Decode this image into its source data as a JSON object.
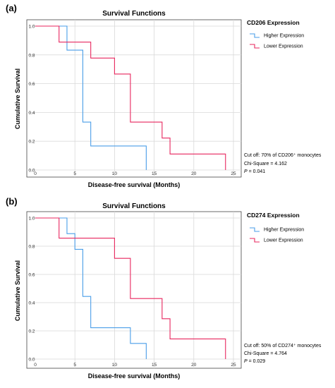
{
  "chart_data": [
    {
      "type": "line",
      "panel_label": "(a)",
      "title": "Survival Functions",
      "xlabel": "Disease-free survival (Months)",
      "ylabel": "Cumulative Survival",
      "xlim": [
        0,
        25
      ],
      "ylim": [
        0,
        1.0
      ],
      "xticks": [
        "0",
        "5",
        "10",
        "15",
        "20",
        "25"
      ],
      "yticks": [
        "0.0",
        "0.2",
        "0.4",
        "0.6",
        "0.8",
        "1.0"
      ],
      "grid": true,
      "legend": {
        "title": "CD206 Expression",
        "placement": "right",
        "entries": [
          "Higher Expression",
          "Lower Expression"
        ]
      },
      "series": [
        {
          "name": "Higher Expression",
          "color": "#4a9ee8",
          "steps": [
            [
              0,
              1.0
            ],
            [
              4,
              0.833
            ],
            [
              6,
              0.333
            ],
            [
              7,
              0.167
            ],
            [
              14,
              0.167
            ]
          ],
          "end_x": 14,
          "end_y": 0.0
        },
        {
          "name": "Lower Expression",
          "color": "#e8265e",
          "steps": [
            [
              0,
              1.0
            ],
            [
              3,
              0.889
            ],
            [
              7,
              0.778
            ],
            [
              10,
              0.667
            ],
            [
              12,
              0.333
            ],
            [
              16,
              0.222
            ],
            [
              17,
              0.111
            ],
            [
              24,
              0.111
            ]
          ],
          "end_x": 24,
          "end_y": 0.0
        }
      ],
      "annotation": {
        "line1": "Cut off: 70% of CD206⁺ monocytes",
        "line2": "Chi-Square = 4.162",
        "p_label": "P",
        "p_value": " = 0.041"
      }
    },
    {
      "type": "line",
      "panel_label": "(b)",
      "title": "Survival Functions",
      "xlabel": "Disease-free survival (Months)",
      "ylabel": "Cumulative Survival",
      "xlim": [
        0,
        25
      ],
      "ylim": [
        0,
        1.0
      ],
      "xticks": [
        "0",
        "5",
        "10",
        "15",
        "20",
        "25"
      ],
      "yticks": [
        "0.0",
        "0.2",
        "0.4",
        "0.6",
        "0.8",
        "1.0"
      ],
      "grid": true,
      "legend": {
        "title": "CD274 Expression",
        "placement": "right",
        "entries": [
          "Higher Expression",
          "Lower Expression"
        ]
      },
      "series": [
        {
          "name": "Higher Expression",
          "color": "#4a9ee8",
          "steps": [
            [
              0,
              1.0
            ],
            [
              4,
              0.889
            ],
            [
              5,
              0.778
            ],
            [
              6,
              0.444
            ],
            [
              7,
              0.222
            ],
            [
              12,
              0.111
            ],
            [
              14,
              0.111
            ]
          ],
          "end_x": 14,
          "end_y": 0.0
        },
        {
          "name": "Lower Expression",
          "color": "#e8265e",
          "steps": [
            [
              0,
              1.0
            ],
            [
              3,
              0.857
            ],
            [
              10,
              0.714
            ],
            [
              12,
              0.429
            ],
            [
              16,
              0.286
            ],
            [
              17,
              0.143
            ],
            [
              24,
              0.143
            ]
          ],
          "end_x": 24,
          "end_y": 0.0
        }
      ],
      "annotation": {
        "line1": "Cut off: 50% of CD274⁺ monocytes",
        "line2": "Chi-Square = 4.764",
        "p_label": "P",
        "p_value": " = 0.029"
      }
    }
  ]
}
